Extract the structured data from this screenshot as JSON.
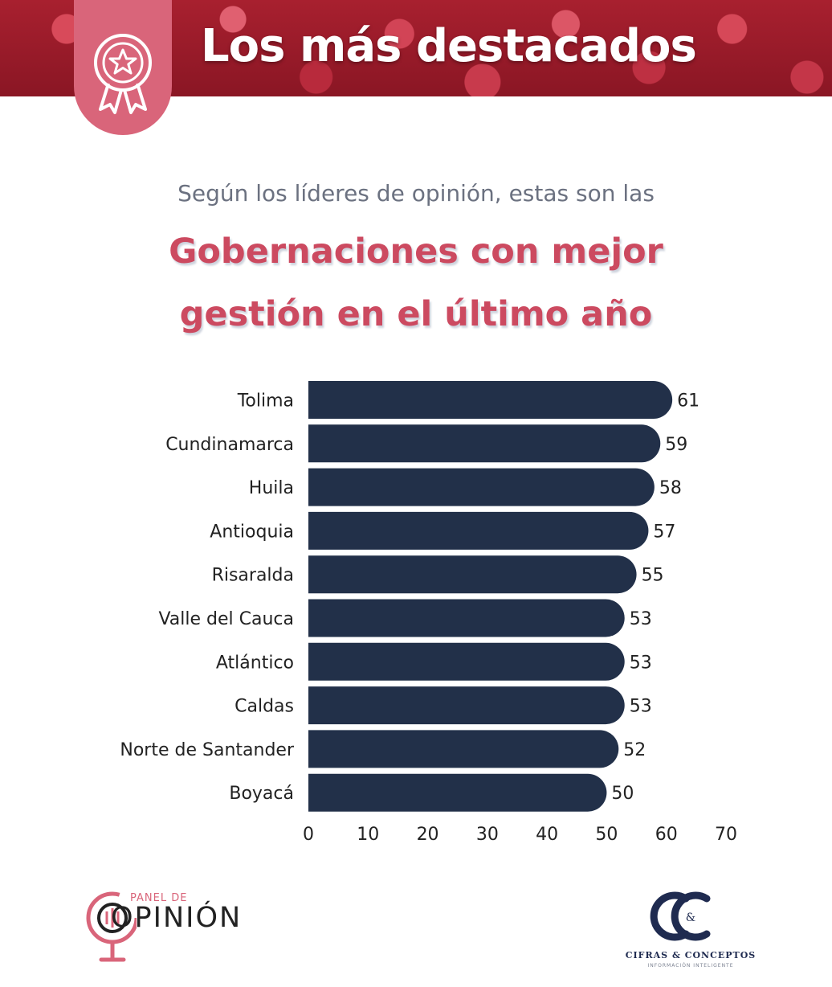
{
  "banner": {
    "title": "Los más destacados",
    "badge_icon": "ribbon-star-icon"
  },
  "intro": "Según los líderes de opinión, estas son las",
  "headline": {
    "line1": "Gobernaciones con mejor",
    "line2": "gestión en el último año"
  },
  "colors": {
    "bar": "#223049",
    "accent": "#cc4a60",
    "banner": "#a8202f",
    "badge": "#d9657a"
  },
  "chart_data": {
    "type": "bar",
    "orientation": "horizontal",
    "categories": [
      "Tolima",
      "Cundinamarca",
      "Huila",
      "Antioquia",
      "Risaralda",
      "Valle del Cauca",
      "Atlántico",
      "Caldas",
      "Norte de Santander",
      "Boyacá"
    ],
    "values": [
      61,
      59,
      58,
      57,
      55,
      53,
      53,
      53,
      52,
      50
    ],
    "xlim": [
      0,
      70
    ],
    "xticks": [
      0,
      10,
      20,
      30,
      40,
      50,
      60,
      70
    ],
    "data_labels": true,
    "grid": false
  },
  "footer": {
    "panel_logo": {
      "small": "PANEL DE",
      "big": "OPINIÓN"
    },
    "cc_logo": {
      "mark": "&",
      "name": "CIFRAS & CONCEPTOS",
      "tagline": "INFORMACIÓN INTELIGENTE"
    }
  }
}
